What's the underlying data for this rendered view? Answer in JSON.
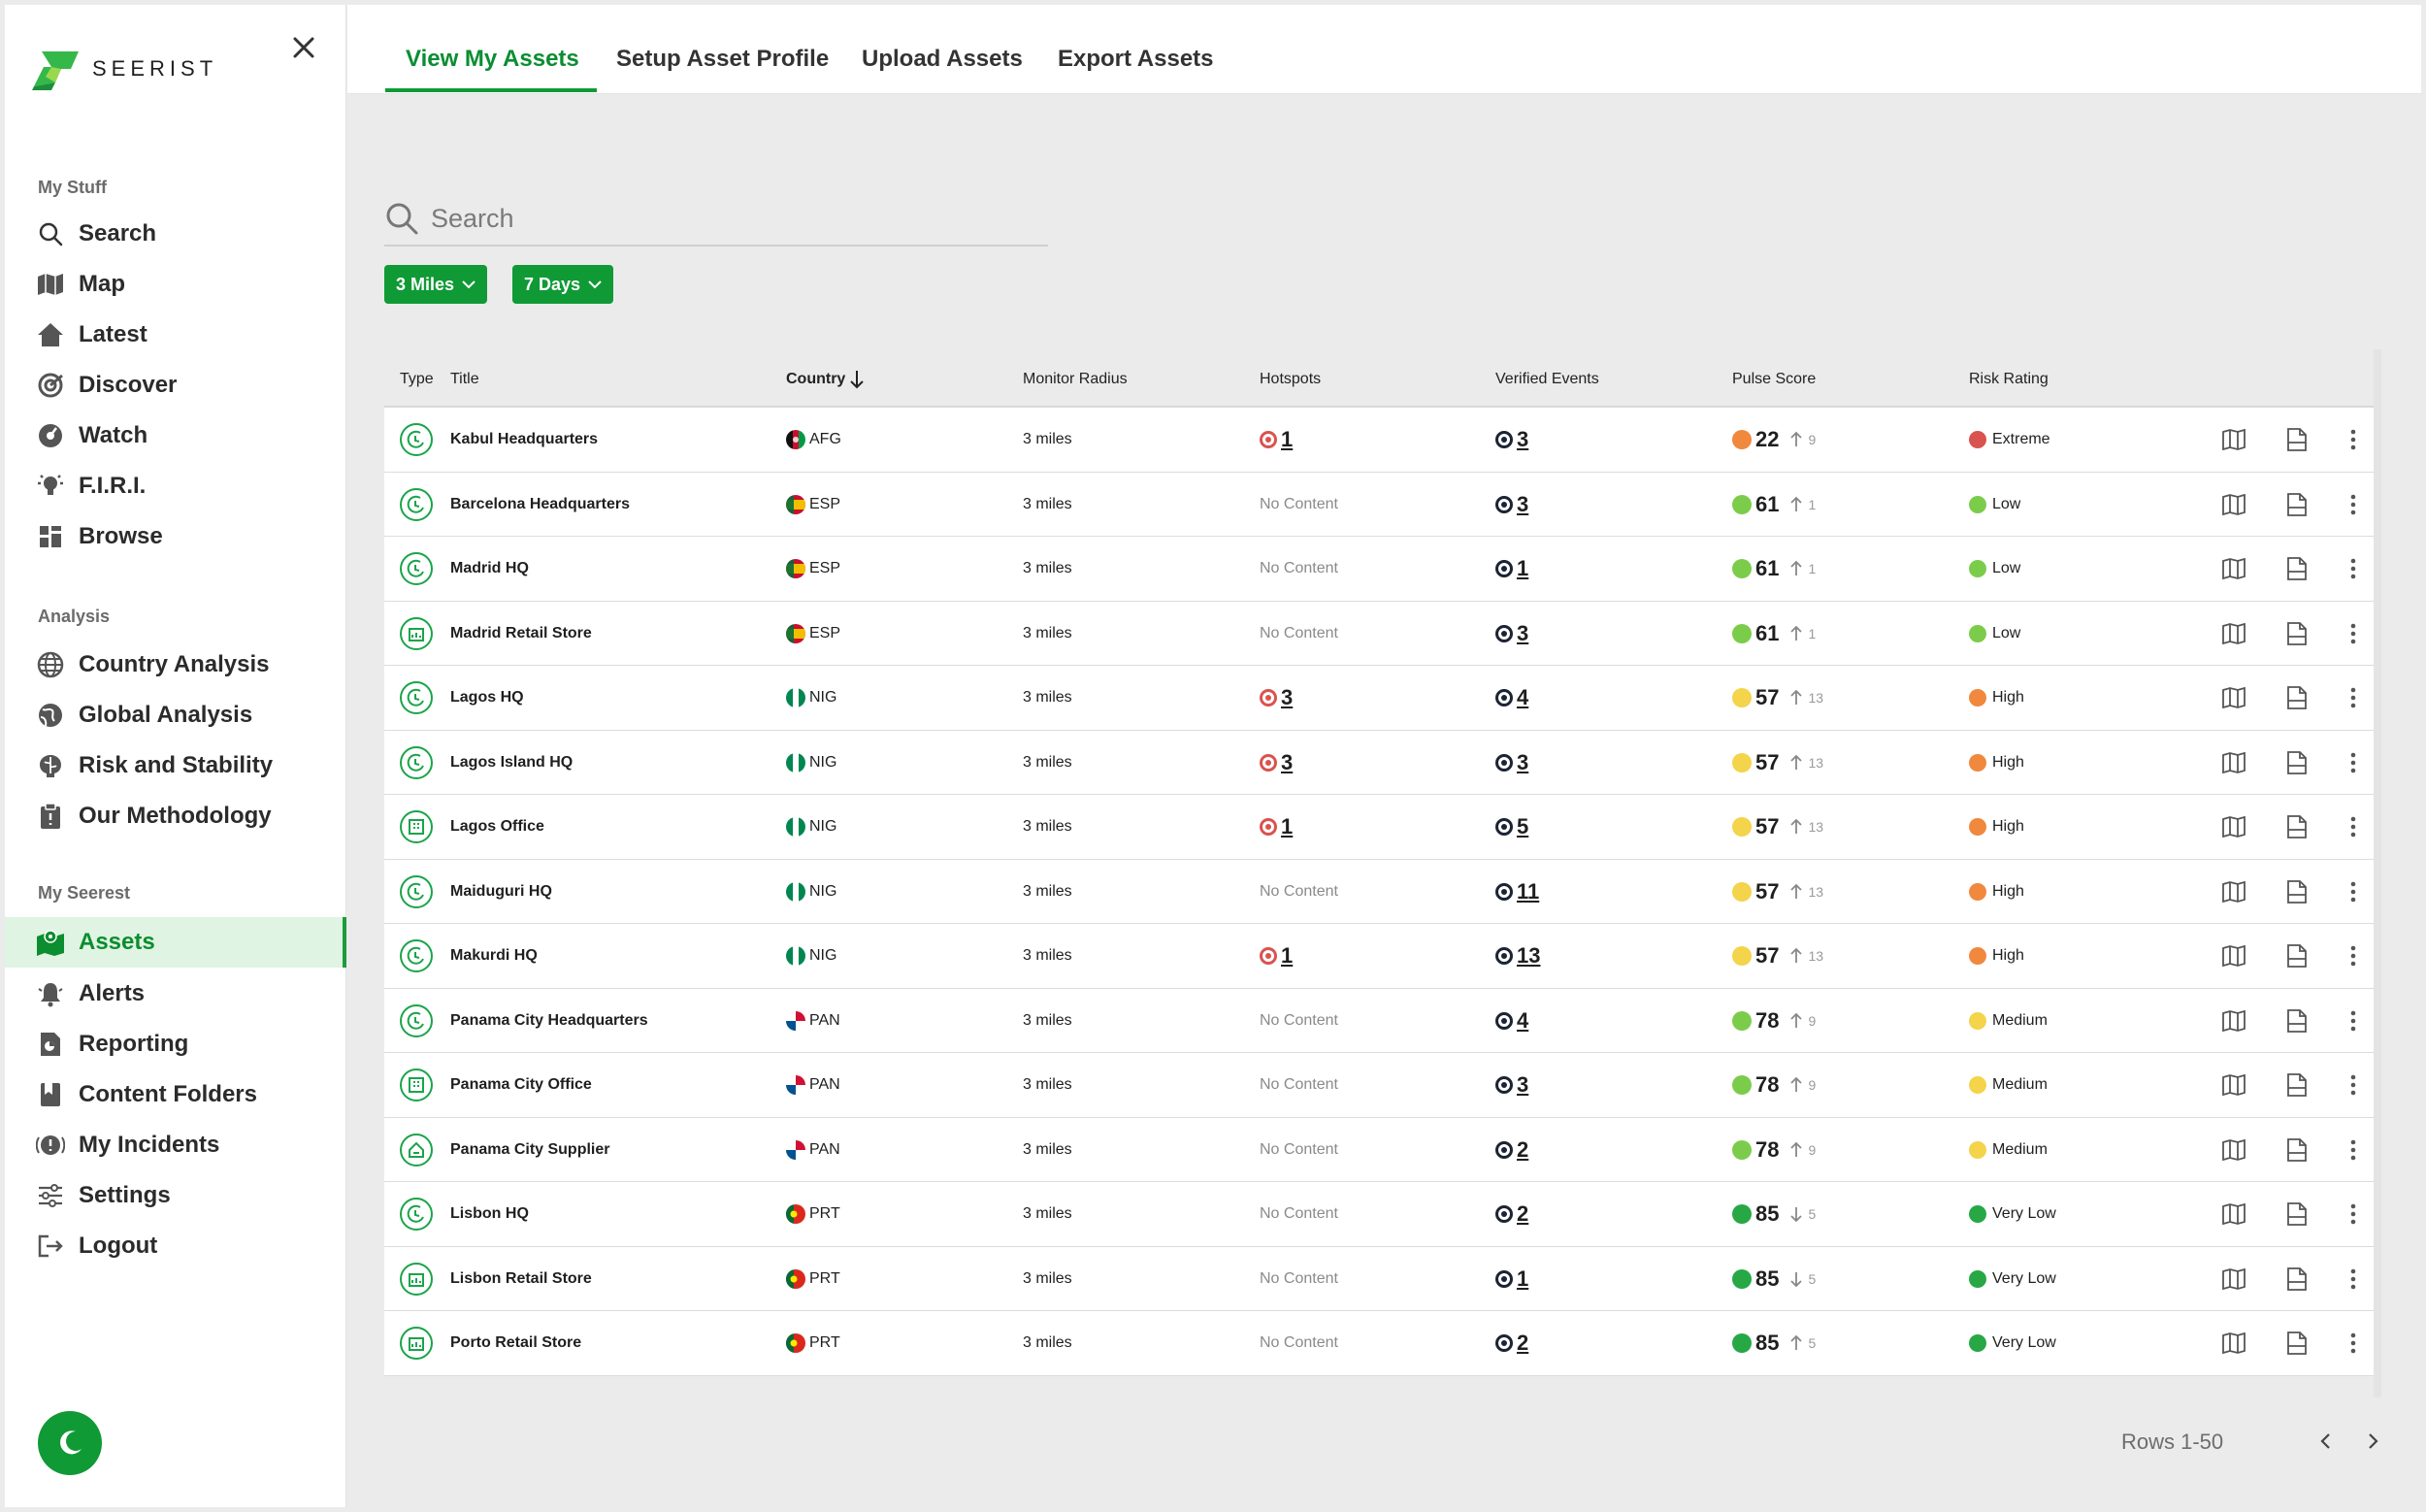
{
  "brand": {
    "name": "SEERIST",
    "accent": "#0f9a36"
  },
  "sidebar": {
    "sections": [
      {
        "title": "My Stuff"
      },
      {
        "title": "Analysis"
      },
      {
        "title": "My Seerest"
      }
    ],
    "items": [
      {
        "label": "Search",
        "icon": "search-icon"
      },
      {
        "label": "Map",
        "icon": "map-icon"
      },
      {
        "label": "Latest",
        "icon": "home-icon"
      },
      {
        "label": "Discover",
        "icon": "discover-icon"
      },
      {
        "label": "Watch",
        "icon": "watch-icon"
      },
      {
        "label": "F.I.R.I.",
        "icon": "lightbulb-icon"
      },
      {
        "label": "Browse",
        "icon": "browse-icon"
      },
      {
        "label": "Country Analysis",
        "icon": "globe-icon"
      },
      {
        "label": "Global Analysis",
        "icon": "globe-icon"
      },
      {
        "label": "Risk and Stability",
        "icon": "brain-icon"
      },
      {
        "label": "Our Methodology",
        "icon": "clipboard-icon"
      },
      {
        "label": "Assets",
        "icon": "assets-map-icon",
        "active": true
      },
      {
        "label": "Alerts",
        "icon": "bell-icon"
      },
      {
        "label": "Reporting",
        "icon": "report-icon"
      },
      {
        "label": "Content Folders",
        "icon": "bookmark-icon"
      },
      {
        "label": "My Incidents",
        "icon": "incident-icon"
      },
      {
        "label": "Settings",
        "icon": "sliders-icon"
      },
      {
        "label": "Logout",
        "icon": "logout-icon"
      }
    ]
  },
  "tabs": [
    {
      "label": "View My Assets",
      "active": true
    },
    {
      "label": "Setup Asset Profile"
    },
    {
      "label": "Upload Assets"
    },
    {
      "label": "Export Assets"
    }
  ],
  "search": {
    "placeholder": "Search",
    "value": ""
  },
  "filters": {
    "radius": "3 Miles",
    "period": "7 Days"
  },
  "table": {
    "headers": {
      "type": "Type",
      "title": "Title",
      "country": "Country",
      "radius": "Monitor Radius",
      "hotspots": "Hotspots",
      "events": "Verified Events",
      "pulse": "Pulse Score",
      "risk": "Risk Rating"
    },
    "rows": [
      {
        "type": "hq",
        "title": "Kabul Headquarters",
        "country": "AFG",
        "radius": "3 miles",
        "hotspots": "1",
        "events": "3",
        "pulse": "22",
        "pulse_color": "#f0883e",
        "trend": "up",
        "delta": "9",
        "risk": "Extreme",
        "risk_color": "#d9534f"
      },
      {
        "type": "hq",
        "title": "Barcelona Headquarters",
        "country": "ESP",
        "radius": "3 miles",
        "hotspots": "No Content",
        "events": "3",
        "pulse": "61",
        "pulse_color": "#7ccc4c",
        "trend": "up",
        "delta": "1",
        "risk": "Low",
        "risk_color": "#7ccc4c"
      },
      {
        "type": "hq",
        "title": "Madrid HQ",
        "country": "ESP",
        "radius": "3 miles",
        "hotspots": "No Content",
        "events": "1",
        "pulse": "61",
        "pulse_color": "#7ccc4c",
        "trend": "up",
        "delta": "1",
        "risk": "Low",
        "risk_color": "#7ccc4c"
      },
      {
        "type": "retail",
        "title": "Madrid Retail Store",
        "country": "ESP",
        "radius": "3 miles",
        "hotspots": "No Content",
        "events": "3",
        "pulse": "61",
        "pulse_color": "#7ccc4c",
        "trend": "up",
        "delta": "1",
        "risk": "Low",
        "risk_color": "#7ccc4c"
      },
      {
        "type": "hq",
        "title": "Lagos HQ",
        "country": "NIG",
        "radius": "3 miles",
        "hotspots": "3",
        "events": "4",
        "pulse": "57",
        "pulse_color": "#f3d44a",
        "trend": "up",
        "delta": "13",
        "risk": "High",
        "risk_color": "#f0883e"
      },
      {
        "type": "hq",
        "title": "Lagos Island HQ",
        "country": "NIG",
        "radius": "3 miles",
        "hotspots": "3",
        "events": "3",
        "pulse": "57",
        "pulse_color": "#f3d44a",
        "trend": "up",
        "delta": "13",
        "risk": "High",
        "risk_color": "#f0883e"
      },
      {
        "type": "office",
        "title": "Lagos Office",
        "country": "NIG",
        "radius": "3 miles",
        "hotspots": "1",
        "events": "5",
        "pulse": "57",
        "pulse_color": "#f3d44a",
        "trend": "up",
        "delta": "13",
        "risk": "High",
        "risk_color": "#f0883e"
      },
      {
        "type": "hq",
        "title": "Maiduguri HQ",
        "country": "NIG",
        "radius": "3 miles",
        "hotspots": "No Content",
        "events": "11",
        "pulse": "57",
        "pulse_color": "#f3d44a",
        "trend": "up",
        "delta": "13",
        "risk": "High",
        "risk_color": "#f0883e"
      },
      {
        "type": "hq",
        "title": "Makurdi HQ",
        "country": "NIG",
        "radius": "3 miles",
        "hotspots": "1",
        "events": "13",
        "pulse": "57",
        "pulse_color": "#f3d44a",
        "trend": "up",
        "delta": "13",
        "risk": "High",
        "risk_color": "#f0883e"
      },
      {
        "type": "hq",
        "title": "Panama City Headquarters",
        "country": "PAN",
        "radius": "3 miles",
        "hotspots": "No Content",
        "events": "4",
        "pulse": "78",
        "pulse_color": "#7ccc4c",
        "trend": "up",
        "delta": "9",
        "risk": "Medium",
        "risk_color": "#f3d44a"
      },
      {
        "type": "office",
        "title": "Panama City Office",
        "country": "PAN",
        "radius": "3 miles",
        "hotspots": "No Content",
        "events": "3",
        "pulse": "78",
        "pulse_color": "#7ccc4c",
        "trend": "up",
        "delta": "9",
        "risk": "Medium",
        "risk_color": "#f3d44a"
      },
      {
        "type": "supplier",
        "title": "Panama City Supplier",
        "country": "PAN",
        "radius": "3 miles",
        "hotspots": "No Content",
        "events": "2",
        "pulse": "78",
        "pulse_color": "#7ccc4c",
        "trend": "up",
        "delta": "9",
        "risk": "Medium",
        "risk_color": "#f3d44a"
      },
      {
        "type": "hq",
        "title": "Lisbon HQ",
        "country": "PRT",
        "radius": "3 miles",
        "hotspots": "No Content",
        "events": "2",
        "pulse": "85",
        "pulse_color": "#27a844",
        "trend": "down",
        "delta": "5",
        "risk": "Very Low",
        "risk_color": "#27a844"
      },
      {
        "type": "retail",
        "title": "Lisbon Retail Store",
        "country": "PRT",
        "radius": "3 miles",
        "hotspots": "No Content",
        "events": "1",
        "pulse": "85",
        "pulse_color": "#27a844",
        "trend": "down",
        "delta": "5",
        "risk": "Very Low",
        "risk_color": "#27a844"
      },
      {
        "type": "retail",
        "title": "Porto Retail Store",
        "country": "PRT",
        "radius": "3 miles",
        "hotspots": "No Content",
        "events": "2",
        "pulse": "85",
        "pulse_color": "#27a844",
        "trend": "up",
        "delta": "5",
        "risk": "Very Low",
        "risk_color": "#27a844"
      }
    ]
  },
  "pager": {
    "label": "Rows 1-50"
  }
}
